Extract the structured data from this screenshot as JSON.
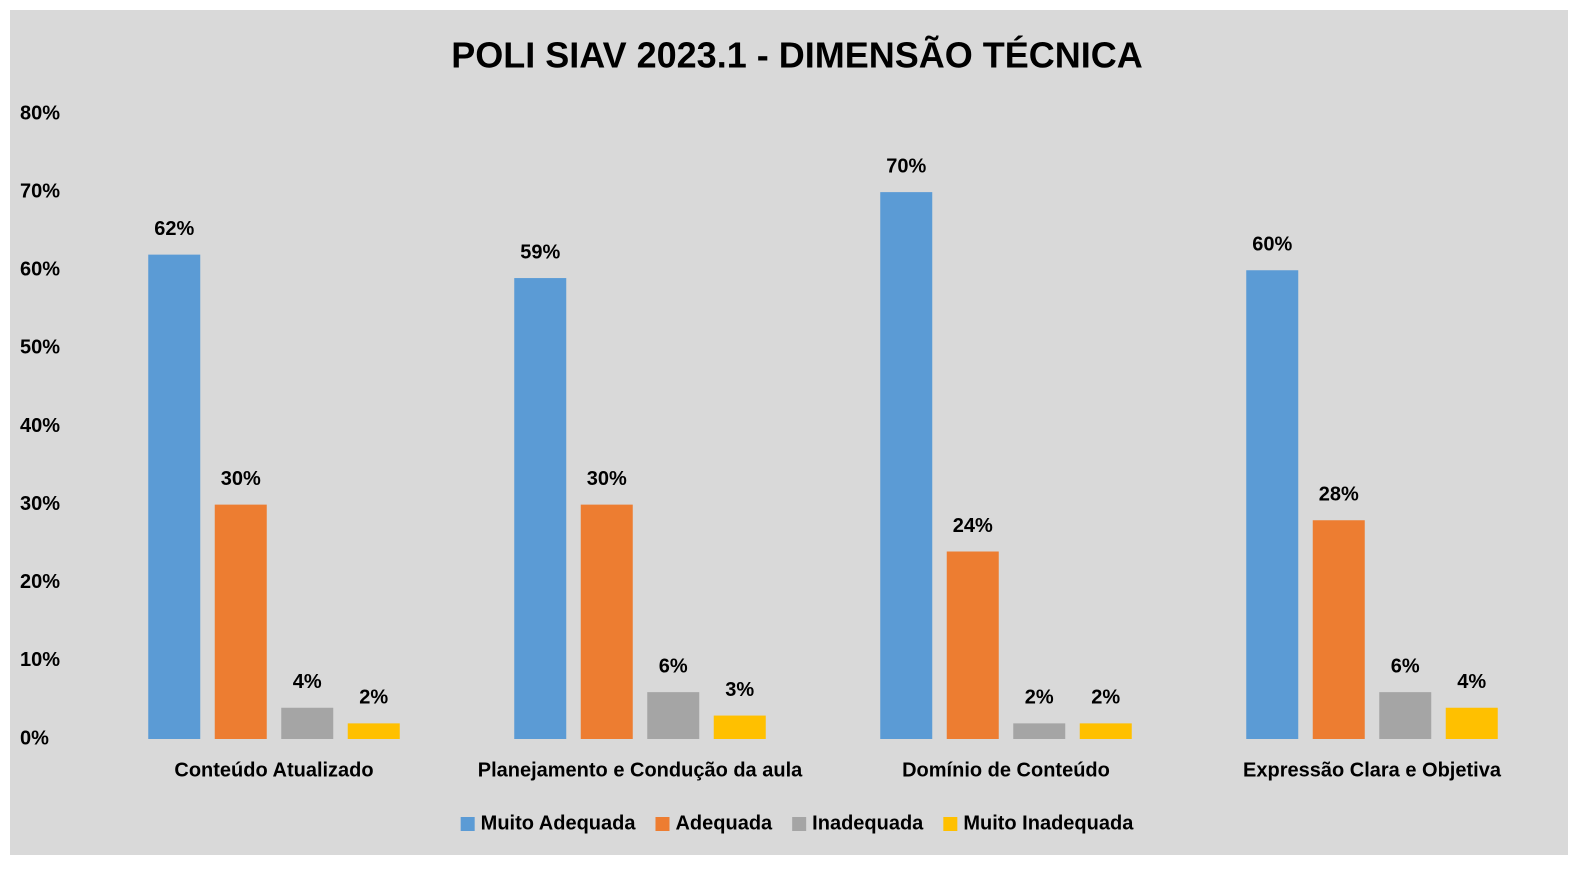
{
  "chart_data": {
    "type": "bar",
    "title": "POLI SIAV 2023.1 - DIMENSÃO TÉCNICA",
    "categories": [
      "Conteúdo Atualizado",
      "Planejamento e Condução da aula",
      "Domínio de Conteúdo",
      "Expressão Clara e Objetiva"
    ],
    "series": [
      {
        "name": "Muito Adequada",
        "color": "#5b9bd5",
        "values": [
          62,
          59,
          70,
          60
        ],
        "value_labels": [
          "62%",
          "59%",
          "70%",
          "60%"
        ]
      },
      {
        "name": "Adequada",
        "color": "#ed7d31",
        "values": [
          30,
          30,
          24,
          28
        ],
        "value_labels": [
          "30%",
          "30%",
          "24%",
          "28%"
        ]
      },
      {
        "name": "Inadequada",
        "color": "#a5a5a5",
        "values": [
          4,
          6,
          2,
          6
        ],
        "value_labels": [
          "4%",
          "6%",
          "2%",
          "6%"
        ]
      },
      {
        "name": "Muito Inadequada",
        "color": "#ffc000",
        "values": [
          2,
          3,
          2,
          4
        ],
        "value_labels": [
          "2%",
          "3%",
          "2%",
          "4%"
        ]
      }
    ],
    "ylim": [
      0,
      80
    ],
    "yticks": [
      {
        "value": 0,
        "label": "0%"
      },
      {
        "value": 10,
        "label": "10%"
      },
      {
        "value": 20,
        "label": "20%"
      },
      {
        "value": 30,
        "label": "30%"
      },
      {
        "value": 40,
        "label": "40%"
      },
      {
        "value": 50,
        "label": "50%"
      },
      {
        "value": 60,
        "label": "60%"
      },
      {
        "value": 70,
        "label": "70%"
      },
      {
        "value": 80,
        "label": "80%"
      }
    ],
    "grid": false,
    "legend": "bottom"
  }
}
